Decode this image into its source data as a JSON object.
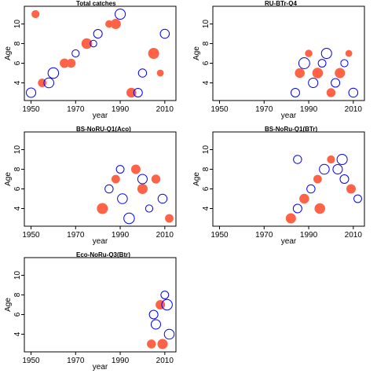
{
  "colors": {
    "positive": "#0000ff",
    "negative": "#ff6347",
    "frame": "#000000"
  },
  "chart_data": [
    {
      "type": "scatter",
      "title": "Total catches",
      "xlabel": "year",
      "ylabel": "Age",
      "xlim": [
        1947,
        2015
      ],
      "ylim": [
        2.2,
        11.8
      ],
      "xticks": [
        1950,
        1970,
        1990,
        2010
      ],
      "yticks": [
        4,
        6,
        8,
        10
      ],
      "grid": false,
      "x": [
        1950,
        1955,
        1960,
        1965,
        1970,
        1975,
        1980,
        1985,
        1990,
        1995,
        2000,
        2005,
        2010,
        1952,
        1958,
        1968,
        1978,
        1988,
        1998,
        2008
      ],
      "y": [
        3,
        4,
        5,
        6,
        7,
        8,
        9,
        10,
        11,
        3,
        5,
        7,
        9,
        11,
        4,
        6,
        8,
        10,
        3,
        5
      ],
      "residuals": [
        1.2,
        -0.8,
        1.5,
        -1.0,
        0.7,
        -1.3,
        1.0,
        -0.6,
        1.4,
        -1.1,
        0.9,
        -1.4,
        1.1,
        -0.7,
        1.3,
        -0.9,
        0.6,
        -1.2,
        1.0,
        -0.5
      ]
    },
    {
      "type": "scatter",
      "title": "RU-BTr-Q4",
      "xlabel": "year",
      "ylabel": "Age",
      "xlim": [
        1947,
        2015
      ],
      "ylim": [
        2.2,
        11.8
      ],
      "xticks": [
        1950,
        1970,
        1990,
        2010
      ],
      "yticks": [
        4,
        6,
        8,
        10
      ],
      "grid": false,
      "x": [
        1984,
        1986,
        1988,
        1990,
        1992,
        1994,
        1996,
        1998,
        2000,
        2002,
        2004,
        2006,
        2008,
        2010
      ],
      "y": [
        3,
        5,
        6,
        7,
        4,
        5,
        6,
        7,
        3,
        4,
        5,
        6,
        7,
        3
      ],
      "residuals": [
        1.0,
        -1.1,
        1.6,
        -0.6,
        1.2,
        -1.3,
        0.8,
        1.4,
        -0.9,
        1.0,
        -1.2,
        0.7,
        -0.5,
        1.1
      ]
    },
    {
      "type": "scatter",
      "title": "BS-NoRU-Q1(Aco)",
      "xlabel": "year",
      "ylabel": "Age",
      "xlim": [
        1947,
        2015
      ],
      "ylim": [
        2.2,
        11.8
      ],
      "xticks": [
        1950,
        1970,
        1990,
        2010
      ],
      "yticks": [
        4,
        6,
        8,
        10
      ],
      "grid": false,
      "x": [
        1982,
        1985,
        1988,
        1991,
        1994,
        1997,
        2000,
        2003,
        2006,
        2009,
        2012,
        1990,
        2000
      ],
      "y": [
        4,
        6,
        7,
        5,
        3,
        8,
        6,
        4,
        7,
        5,
        3,
        8,
        7
      ],
      "residuals": [
        -1.4,
        0.9,
        -0.8,
        1.3,
        1.5,
        -1.0,
        -1.2,
        0.7,
        -0.9,
        1.1,
        -0.8,
        0.8,
        1.2
      ]
    },
    {
      "type": "scatter",
      "title": "BS-NoRu-Q1(BTr)",
      "xlabel": "year",
      "ylabel": "Age",
      "xlim": [
        1947,
        2015
      ],
      "ylim": [
        2.2,
        11.8
      ],
      "xticks": [
        1950,
        1970,
        1990,
        2010
      ],
      "yticks": [
        4,
        6,
        8,
        10
      ],
      "grid": false,
      "x": [
        1982,
        1985,
        1988,
        1991,
        1994,
        1997,
        2000,
        2003,
        2006,
        2009,
        2012,
        1985,
        1995,
        2005
      ],
      "y": [
        3,
        4,
        5,
        6,
        7,
        8,
        9,
        8,
        7,
        6,
        5,
        9,
        4,
        9
      ],
      "residuals": [
        -1.2,
        1.0,
        -1.1,
        0.9,
        -0.8,
        1.3,
        -0.7,
        1.2,
        1.0,
        -1.0,
        0.8,
        0.9,
        -1.3,
        1.4
      ]
    },
    {
      "type": "scatter",
      "title": "Eco-NoRu-Q3(Btr)",
      "xlabel": "year",
      "ylabel": "Age",
      "xlim": [
        1947,
        2015
      ],
      "ylim": [
        2.2,
        11.8
      ],
      "xticks": [
        1950,
        1970,
        1990,
        2010
      ],
      "yticks": [
        4,
        6,
        8,
        10
      ],
      "grid": false,
      "x": [
        2004,
        2006,
        2008,
        2010,
        2012,
        2005,
        2009,
        2011
      ],
      "y": [
        3,
        5,
        7,
        8,
        4,
        6,
        3,
        7
      ],
      "residuals": [
        -0.9,
        1.2,
        -1.0,
        0.8,
        1.3,
        1.0,
        -1.2,
        1.5
      ]
    }
  ]
}
